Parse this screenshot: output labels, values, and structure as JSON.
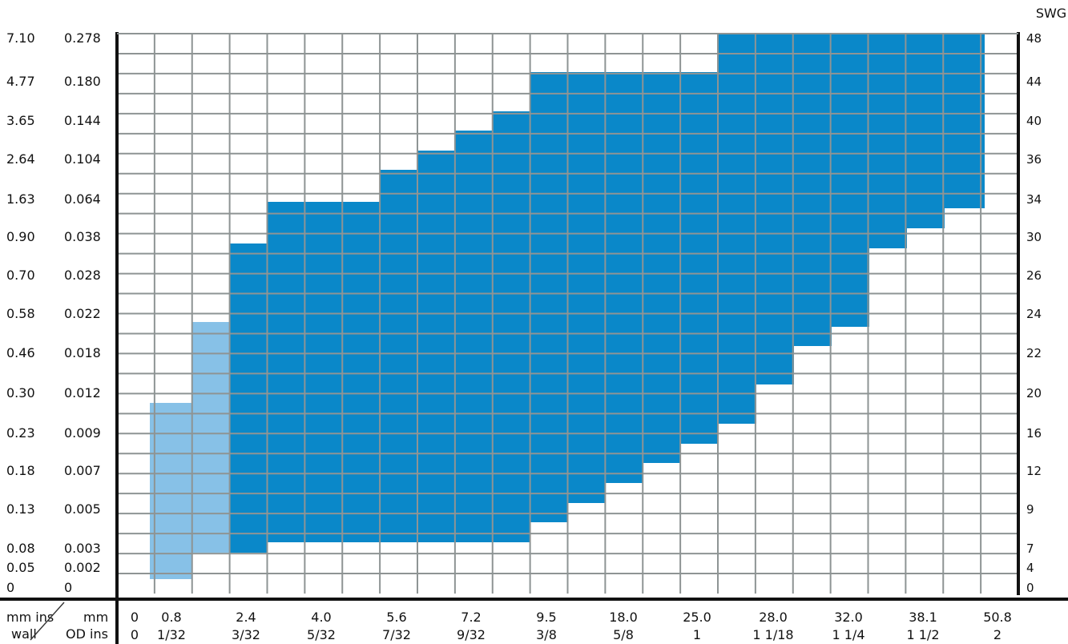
{
  "chart_data": {
    "type": "heatmap",
    "title": "",
    "right_axis_title": "SWG",
    "corner_labels": {
      "left_top": "mm ins",
      "left_bottom": "wall",
      "right_top": "mm",
      "right_bottom": "OD ins"
    },
    "y_ticks_mm": [
      "7.10",
      "4.77",
      "3.65",
      "2.64",
      "1.63",
      "0.90",
      "0.70",
      "0.58",
      "0.46",
      "0.30",
      "0.23",
      "0.18",
      "0.13",
      "0.08",
      "0.05",
      "0"
    ],
    "y_ticks_ins": [
      "0.278",
      "0.180",
      "0.144",
      "0.104",
      "0.064",
      "0.038",
      "0.028",
      "0.022",
      "0.018",
      "0.012",
      "0.009",
      "0.007",
      "0.005",
      "0.003",
      "0.002",
      "0"
    ],
    "y_ticks_swg": [
      "48",
      "44",
      "40",
      "36",
      "34",
      "30",
      "26",
      "24",
      "22",
      "20",
      "16",
      "12",
      "9",
      "7",
      "4",
      "0"
    ],
    "x_ticks_mm": [
      "0",
      "0.8",
      "2.4",
      "4.0",
      "5.6",
      "7.2",
      "9.5",
      "18.0",
      "25.0",
      "28.0",
      "32.0",
      "38.1",
      "50.8"
    ],
    "x_ticks_ins": [
      "0",
      "1/32",
      "3/32",
      "5/32",
      "7/32",
      "9/32",
      "3/8",
      "5/8",
      "1",
      "1 1/18",
      "1 1/4",
      "1 1/2",
      "2"
    ],
    "regions": [
      {
        "name": "",
        "color": "#87c1e7",
        "od_ins": [
          "1/32",
          "3/32"
        ],
        "wall_mm_range": [
          [
            0.05,
            0.3
          ],
          [
            0.08,
            0.58
          ]
        ]
      },
      {
        "name": "",
        "color": "#0a88c9",
        "od_ins": [
          "3/32",
          "5/32",
          "7/32",
          "9/32",
          "3/8",
          "5/8",
          "1",
          "1 1/18",
          "1 1/4",
          "1 1/2"
        ],
        "wall_mm_range": [
          [
            0.08,
            0.9
          ],
          [
            0.08,
            1.63
          ],
          [
            0.08,
            2.64
          ],
          [
            0.08,
            3.65
          ],
          [
            0.13,
            4.77
          ],
          [
            0.18,
            4.77
          ],
          [
            0.23,
            7.1
          ],
          [
            0.3,
            7.1
          ],
          [
            0.58,
            7.1
          ],
          [
            0.9,
            7.1
          ]
        ]
      }
    ],
    "grid": true
  }
}
